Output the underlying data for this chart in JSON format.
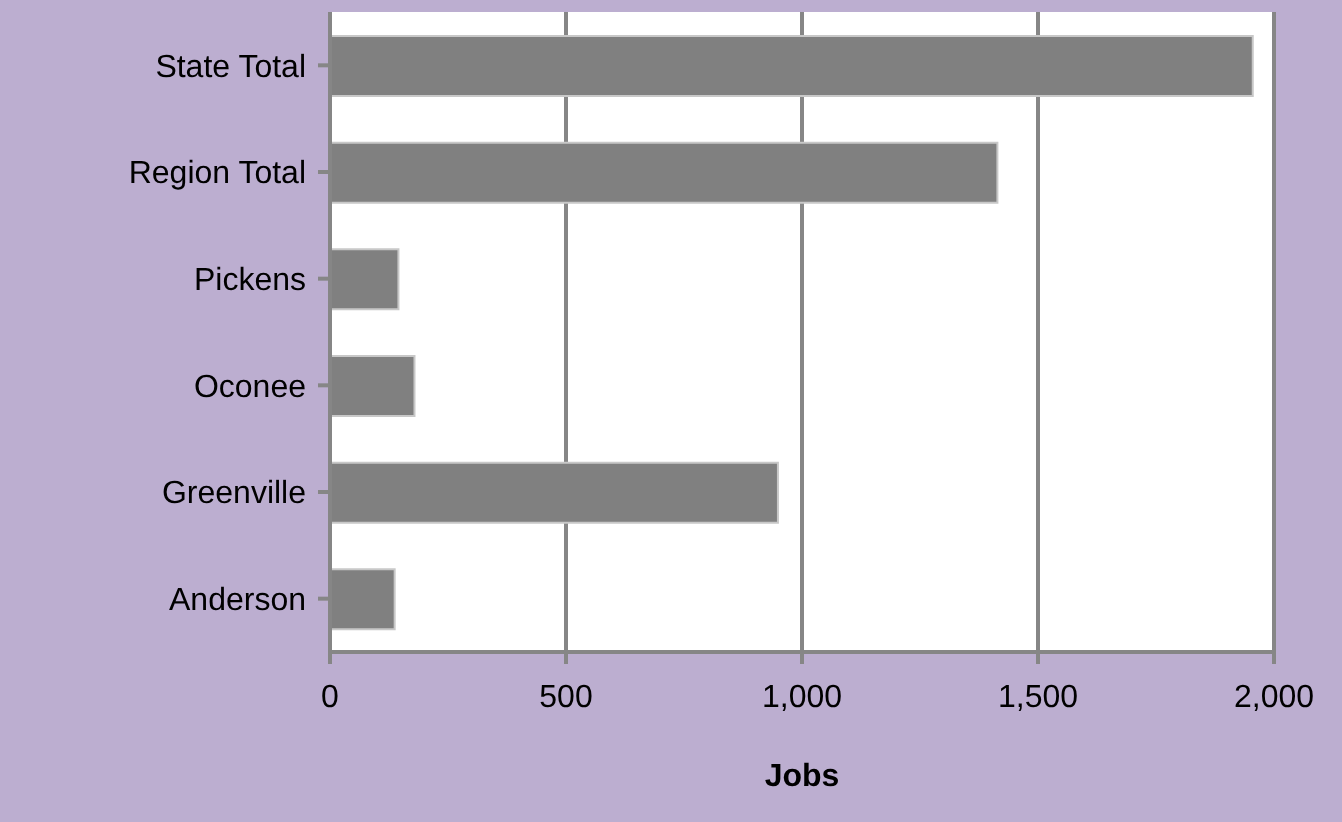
{
  "chart_data": {
    "type": "bar",
    "orientation": "horizontal",
    "xlabel": "Jobs",
    "categories": [
      "State Total",
      "Region Total",
      "Pickens",
      "Oconee",
      "Greenville",
      "Anderson"
    ],
    "values": [
      1955,
      1414,
      145,
      179,
      949,
      137
    ],
    "color": "#808080",
    "xlim": [
      0,
      2000
    ],
    "xticks": [
      0,
      500,
      {
        "value": 1000,
        "label": "1,000"
      },
      {
        "value": 1500,
        "label": "1,500"
      },
      {
        "value": 2000,
        "label": "2,000"
      }
    ],
    "grid": "x",
    "legend": false
  }
}
